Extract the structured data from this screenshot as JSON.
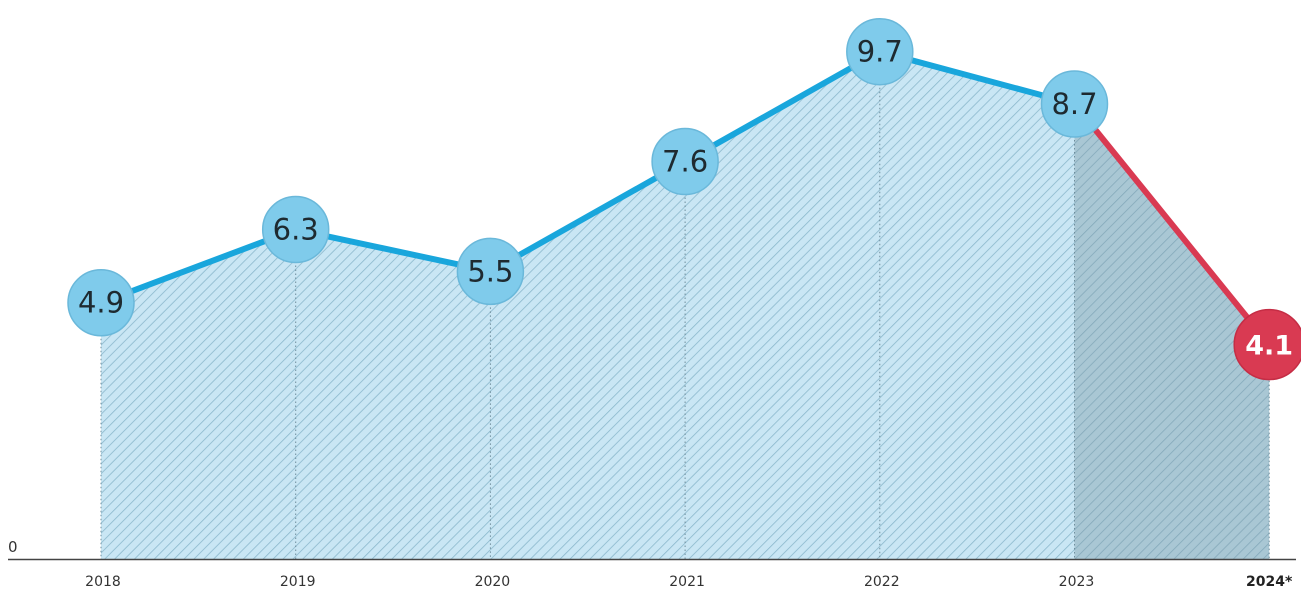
{
  "chart_data": {
    "type": "line",
    "title": "",
    "xlabel": "",
    "ylabel": "",
    "x": [
      "2018",
      "2019",
      "2020",
      "2021",
      "2022",
      "2023",
      "2024*"
    ],
    "values": [
      4.9,
      6.3,
      5.5,
      7.6,
      9.7,
      8.7,
      4.1
    ],
    "value_labels": [
      "4.9",
      "6.3",
      "5.5",
      "7.6",
      "9.7",
      "8.7",
      "4.1"
    ],
    "y_zero_label": "0",
    "ylim": [
      0,
      10
    ],
    "highlight_index": 6,
    "grid": false,
    "colors": {
      "line": "#19a6dc",
      "bubble": "#7fcbeb",
      "bubble_stroke": "#6ab8da",
      "area": "#c9e6f4",
      "area_shaded": "#a9c7d4",
      "hatch": "#8bb8cc",
      "highlight": "#d93a52",
      "axis": "#444444"
    }
  }
}
